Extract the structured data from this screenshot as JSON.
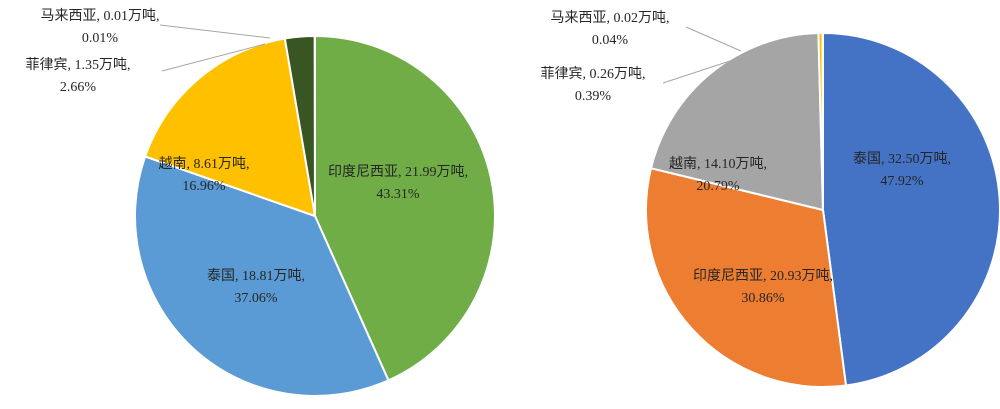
{
  "chart_data": [
    {
      "type": "pie",
      "slices": [
        {
          "name": "印度尼西亚",
          "value": 21.99,
          "percent": 43.31,
          "color": "#70AD47",
          "line1": "印度尼西亚, 21.99万吨,",
          "line2": "43.31%"
        },
        {
          "name": "泰国",
          "value": 18.81,
          "percent": 37.06,
          "color": "#5B9BD5",
          "line1": "泰国, 18.81万吨,",
          "line2": "37.06%"
        },
        {
          "name": "越南",
          "value": 8.61,
          "percent": 16.96,
          "color": "#FFC000",
          "line1": "越南, 8.61万吨,",
          "line2": "16.96%"
        },
        {
          "name": "菲律宾",
          "value": 1.35,
          "percent": 2.66,
          "color": "#375623",
          "line1": "菲律宾, 1.35万吨,",
          "line2": "2.66%"
        },
        {
          "name": "马来西亚",
          "value": 0.01,
          "percent": 0.01,
          "color": "#A9D18E",
          "line1": "马来西亚, 0.01万吨,",
          "line2": "0.01%"
        }
      ]
    },
    {
      "type": "pie",
      "slices": [
        {
          "name": "泰国",
          "value": 32.5,
          "percent": 47.92,
          "color": "#4472C4",
          "line1": "泰国, 32.50万吨,",
          "line2": "47.92%"
        },
        {
          "name": "印度尼西亚",
          "value": 20.93,
          "percent": 30.86,
          "color": "#ED7D31",
          "line1": "印度尼西亚, 20.93万吨,",
          "line2": "30.86%"
        },
        {
          "name": "越南",
          "value": 14.1,
          "percent": 20.79,
          "color": "#A5A5A5",
          "line1": "越南, 14.10万吨,",
          "line2": "20.79%"
        },
        {
          "name": "菲律宾",
          "value": 0.26,
          "percent": 0.39,
          "color": "#FFC000",
          "line1": "菲律宾, 0.26万吨,",
          "line2": "0.39%"
        },
        {
          "name": "马来西亚",
          "value": 0.02,
          "percent": 0.04,
          "color": "#F4B183",
          "line1": "马来西亚, 0.02万吨,",
          "line2": "0.04%"
        }
      ]
    }
  ]
}
